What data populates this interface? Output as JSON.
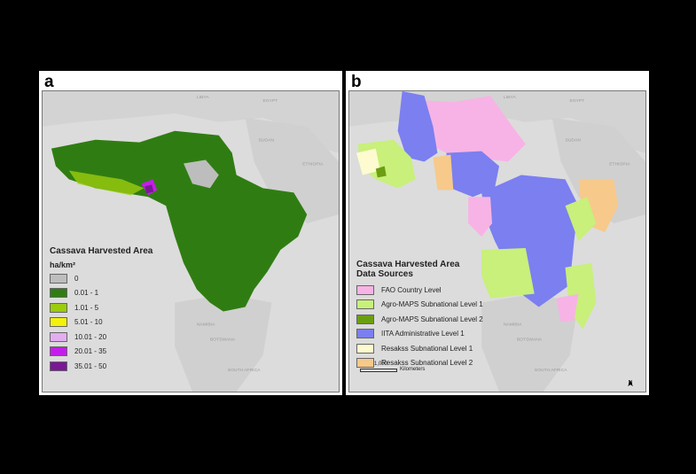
{
  "panels": {
    "a": {
      "letter": "a",
      "legend_title": "Cassava Harvested Area",
      "legend_unit": "ha/km²",
      "legend_items": [
        {
          "label": "0",
          "color": "#bdbdbd"
        },
        {
          "label": "0.01 - 1",
          "color": "#2f7d12"
        },
        {
          "label": "1.01 - 5",
          "color": "#9bcc0e"
        },
        {
          "label": "5.01 - 10",
          "color": "#f4f20a"
        },
        {
          "label": "10.01 - 20",
          "color": "#e2aef0"
        },
        {
          "label": "20.01 - 35",
          "color": "#c31ee9"
        },
        {
          "label": "35.01 - 50",
          "color": "#7a1896"
        }
      ],
      "places": {
        "libya": "LIBYA",
        "egypt": "EGYPT",
        "sudan": "SUDAN",
        "ethiopia": "ETHIOPIA",
        "namibia": "NAMIBIA",
        "botswana": "BOTSWANA",
        "south_africa": "SOUTH AFRICA"
      }
    },
    "b": {
      "letter": "b",
      "legend_title_line1": "Cassava Harvested Area",
      "legend_title_line2": "Data Sources",
      "legend_items": [
        {
          "label": "FAO Country Level",
          "color": "#f7b3e5"
        },
        {
          "label": "Agro-MAPS Subnational Level 1",
          "color": "#c8f07a"
        },
        {
          "label": "Agro-MAPS Subnational Level 2",
          "color": "#6b9e12"
        },
        {
          "label": "IITA Administrative Level 1",
          "color": "#7b7ff0"
        },
        {
          "label": "Resakss Subnational Level 1",
          "color": "#fdfbcf"
        },
        {
          "label": "Resakss Subnational Level 2",
          "color": "#f7c98a"
        }
      ],
      "places": {
        "libya": "LIBYA",
        "egypt": "EGYPT",
        "sudan": "SUDAN",
        "ethiopia": "ETHIOPIA",
        "namibia": "NAMIBIA",
        "botswana": "BOTSWANA",
        "south_africa": "SOUTH AFRICA"
      },
      "scale_value": "1,000",
      "scale_unit": "Kilometers",
      "north_label": "N"
    }
  }
}
